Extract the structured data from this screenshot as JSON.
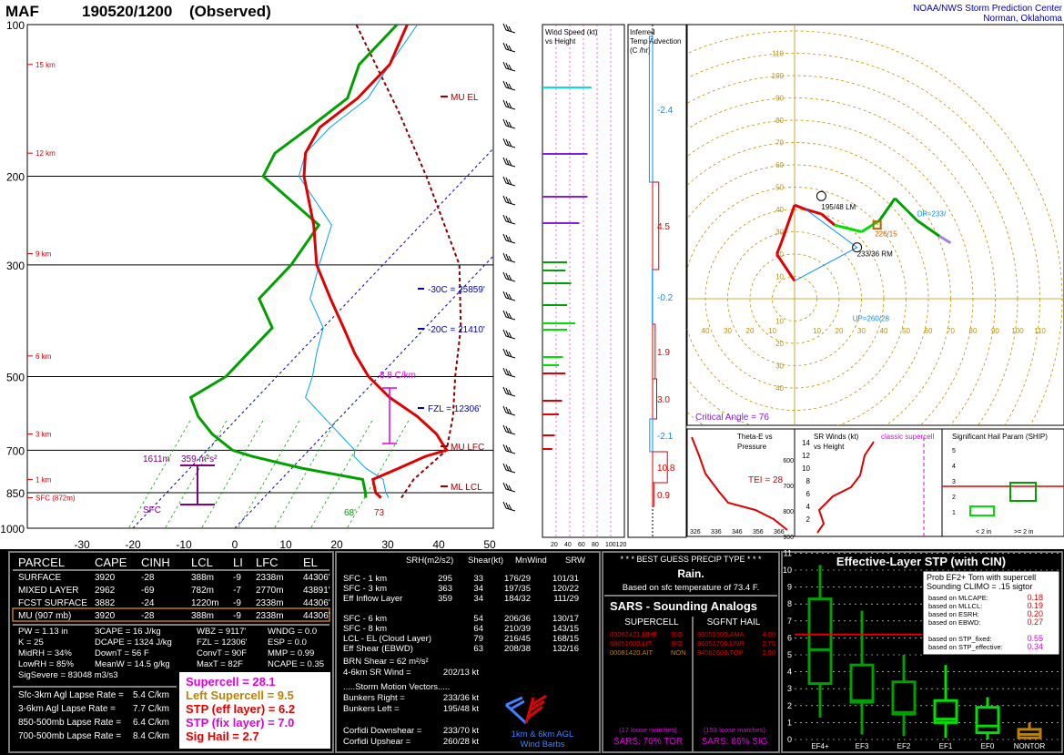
{
  "header": {
    "station": "MAF",
    "time": "190520/1200",
    "status": "(Observed)",
    "org_line1": "NOAA/NWS Storm Prediction Center",
    "org_line2": "Norman, Oklahoma"
  },
  "colors": {
    "temperature": "#e00000",
    "dewpoint": "#00a000",
    "virtual_temp": "#e00000",
    "parcel": "#8b0000",
    "wetbulb": "#00a0ff",
    "label_blue": "#0000c0",
    "label_magenta": "#e000e0",
    "label_purple": "#800080",
    "panel_bg": "#000000",
    "panel_border": "#7a7a7a"
  },
  "chart_data": {
    "type": "line",
    "title": "MAF 190520/1200 (Observed)",
    "pressure_labels": [
      "100",
      "200",
      "300",
      "500",
      "700",
      "850",
      "1000"
    ],
    "pressure_levels": [
      100,
      200,
      300,
      500,
      700,
      850,
      1000
    ],
    "temp_ticks": [
      "-30",
      "-20",
      "-10",
      "0",
      "10",
      "20",
      "30",
      "40",
      "50"
    ],
    "temp_tick_values": [
      -30,
      -20,
      -10,
      0,
      10,
      20,
      30,
      40,
      50
    ],
    "height_labels": [
      "15 km",
      "12 km",
      "9 km",
      "6 km",
      "3 km",
      "1 km",
      "SFC (872m)"
    ],
    "height_label_pressures": [
      120,
      180,
      285,
      455,
      650,
      800,
      870
    ],
    "series": [
      {
        "name": "Temperature",
        "pressure": [
          870,
          850,
          800,
          760,
          720,
          700,
          650,
          600,
          550,
          500,
          450,
          400,
          350,
          300,
          250,
          200,
          180,
          160,
          140,
          120,
          100
        ],
        "values": [
          23,
          21,
          18,
          21,
          24,
          27,
          22,
          15,
          6,
          -2,
          -9,
          -16,
          -24,
          -33,
          -41,
          -52,
          -56,
          -58,
          -56,
          -56,
          -60
        ]
      },
      {
        "name": "Dewpoint",
        "pressure": [
          870,
          850,
          800,
          760,
          720,
          700,
          650,
          600,
          550,
          500,
          450,
          400,
          350,
          300,
          250,
          200,
          180,
          160,
          140,
          120,
          100
        ],
        "values": [
          20,
          19,
          16,
          2,
          -10,
          -15,
          -22,
          -28,
          -33,
          -30,
          -30,
          -30,
          -38,
          -38,
          -40,
          -60,
          -62,
          -60,
          -58,
          -62,
          -62
        ]
      }
    ],
    "labels": {
      "mu_el": "MU  EL",
      "mu_lfc": "MU LFC",
      "ml_lcl": "ML  LCL",
      "wbz1": "-30C = 25859'",
      "wbz2": "-20C = 21410'",
      "fzl": "FZL = 12306'",
      "lapse": "8.8 C/km",
      "eff_depth": "1611m",
      "eff_srh": "359 m²s²",
      "sfc": "SFC",
      "sfc_t": "73",
      "sfc_td": "68'"
    },
    "wind_speed": {
      "title": "Wind Speed (kt)",
      "subtitle": "vs Height",
      "ticks": [
        "20",
        "40",
        "60",
        "80",
        "100120"
      ],
      "bars": [
        {
          "color": "#00e0e0",
          "value": 60
        },
        {
          "color": "#8020e0",
          "value": 55
        },
        {
          "color": "#8020e0",
          "value": 55
        },
        {
          "color": "#8020e0",
          "value": 45
        },
        {
          "color": "#00a000",
          "value": 30
        },
        {
          "color": "#00a000",
          "value": 28
        },
        {
          "color": "#00a000",
          "value": 35
        },
        {
          "color": "#00a000",
          "value": 30
        },
        {
          "color": "#00e000",
          "value": 40
        },
        {
          "color": "#00e000",
          "value": 30
        },
        {
          "color": "#00e000",
          "value": 25
        },
        {
          "color": "#00e000",
          "value": 20
        },
        {
          "color": "#e00000",
          "value": 28
        },
        {
          "color": "#e00000",
          "value": 24
        },
        {
          "color": "#e00000",
          "value": 20
        },
        {
          "color": "#e00000",
          "value": 15
        },
        {
          "color": "#e00000",
          "value": 12
        }
      ]
    },
    "temp_adv": {
      "title": "Inferred",
      "subtitle": "Temp Advection",
      "units": "(C /hr)",
      "values": [
        "-2.4",
        "4.5",
        "-0.2",
        "1.9",
        "3.0",
        "-2.1",
        "10.8",
        "0.9"
      ]
    },
    "hodograph": {
      "ring_labels": [
        "10",
        "20",
        "30",
        "40",
        "50",
        "60",
        "70",
        "80",
        "90",
        "100",
        "110"
      ],
      "axis_ticks_x": [
        "10",
        "20",
        "30",
        "40",
        "50",
        "60",
        "70",
        "80",
        "90",
        "100",
        "110"
      ],
      "bunkers_left": "195/48 LM",
      "bunkers_right": "233/36 RM",
      "mean_wind": "226/15",
      "dp": "DP=233/",
      "up": "UP=260/28",
      "critical_angle": "Critical Angle = 76",
      "points_u": [
        0,
        -8,
        -6,
        0,
        5,
        12,
        18,
        30,
        38,
        45,
        50,
        55,
        65,
        70
      ],
      "points_v": [
        8,
        20,
        25,
        42,
        40,
        38,
        33,
        30,
        35,
        45,
        40,
        35,
        28,
        25
      ]
    },
    "theta_e": {
      "title": "Theta-E vs",
      "subtitle": "Pressure",
      "tei": "TEI = 28",
      "ticks": [
        "326",
        "336",
        "346",
        "356",
        "366"
      ],
      "pticks": [
        "600",
        "700",
        "800",
        "900"
      ]
    },
    "sr_winds": {
      "title": "SR Winds (kt)",
      "subtitle": "vs Height",
      "note": "classic supercell",
      "yticks": [
        "14",
        "12",
        "10",
        "8",
        "6",
        "4",
        "2"
      ]
    },
    "ship": {
      "title": "Significant Hail Param (SHIP)",
      "yticks": [
        "5",
        "4",
        "3",
        "2",
        "1"
      ],
      "cats": [
        "< 2 in",
        ">= 2 in"
      ]
    }
  },
  "parcel_table": {
    "headers": [
      "PARCEL",
      "CAPE",
      "CINH",
      "LCL",
      "LI",
      "LFC",
      "EL"
    ],
    "rows": [
      [
        "SURFACE",
        "3920",
        "-28",
        "388m",
        "-9",
        "2338m",
        "44306'"
      ],
      [
        "MIXED LAYER",
        "2962",
        "-69",
        "782m",
        "-7",
        "2770m",
        "43891'"
      ],
      [
        "FCST SURFACE",
        "3882",
        "-24",
        "1220m",
        "-9",
        "2338m",
        "44306'"
      ],
      [
        "MU  (907 mb)",
        "3920",
        "-28",
        "388m",
        "-9",
        "2338m",
        "44306'"
      ]
    ]
  },
  "indices": [
    [
      "PW = 1.13 in",
      "3CAPE = 16 J/kg",
      "WBZ = 9117'",
      "WNDG = 0.0"
    ],
    [
      "K = 25",
      "DCAPE = 1324 J/kg",
      "FZL = 12306'",
      "ESP = 0.0"
    ],
    [
      "MidRH = 34%",
      "DownT = 56 F",
      "ConvT = 90F",
      "MMP = 0.99"
    ],
    [
      "LowRH = 85%",
      "MeanW = 14.5 g/kg",
      "MaxT = 82F",
      "NCAPE = 0.35"
    ],
    [
      "SigSevere = 83048 m3/s3",
      "",
      "",
      ""
    ]
  ],
  "lapse_rates": [
    [
      "Sfc-3km Agl Lapse Rate =",
      "5.4 C/km"
    ],
    [
      "3-6km Agl Lapse Rate =",
      "7.7 C/km"
    ],
    [
      "850-500mb Lapse Rate =",
      "6.4 C/km"
    ],
    [
      "700-500mb Lapse Rate =",
      "8.4 C/km"
    ]
  ],
  "composites": [
    {
      "text": "Supercell = 28.1",
      "color": "#e000e0"
    },
    {
      "text": "Left Supercell = 9.5",
      "color": "#c08000"
    },
    {
      "text": "STP (eff layer) = 6.2",
      "color": "#e00000"
    },
    {
      "text": "STP (fix layer) = 7.0",
      "color": "#e000e0"
    },
    {
      "text": "Sig Hail = 2.7",
      "color": "#e00000"
    }
  ],
  "kinematics": {
    "headers": [
      "SRH(m2/s2)",
      "Shear(kt)",
      "MnWind",
      "SRW"
    ],
    "rows": [
      [
        "SFC - 1 km",
        "295",
        "33",
        "176/29",
        "101/31"
      ],
      [
        "SFC - 3 km",
        "363",
        "34",
        "197/35",
        "120/22"
      ],
      [
        "Eff Inflow Layer",
        "359",
        "34",
        "184/32",
        "111/29"
      ],
      [
        "",
        "",
        "",
        "",
        ""
      ],
      [
        "SFC - 6 km",
        "",
        "54",
        "206/36",
        "130/17"
      ],
      [
        "SFC - 8 km",
        "",
        "64",
        "210/39",
        "143/15"
      ],
      [
        "LCL - EL (Cloud Layer)",
        "",
        "79",
        "216/45",
        "168/15"
      ],
      [
        "Eff Shear (EBWD)",
        "",
        "63",
        "208/38",
        "132/16"
      ]
    ],
    "brn_shear": "BRN Shear =   62 m²/s²",
    "sr_wind_label": "4-6km SR Wind =",
    "sr_wind_value": "202/13 kt",
    "storm_motion_header": ".....Storm Motion Vectors.....",
    "storm_motion": [
      [
        "Bunkers Right =",
        "233/36 kt"
      ],
      [
        "Bunkers Left =",
        "195/48 kt"
      ],
      [
        "",
        ""
      ],
      [
        "Corfidi Downshear =",
        "233/70 kt"
      ],
      [
        "Corfidi Upshear =",
        "260/28 kt"
      ]
    ],
    "barb_caption1": "1km & 6km AGL",
    "barb_caption2": "Wind Barbs"
  },
  "precip": {
    "title": "* * * BEST GUESS PRECIP TYPE * * *",
    "type": "Rain.",
    "basis": "Based on sfc temperature of 73.4 F."
  },
  "sars": {
    "title": "SARS - Sounding Analogs",
    "col1": "SUPERCELL",
    "col2": "SGFNT HAIL",
    "supercell": [
      {
        "id": "03062421.MHE",
        "cat": "SIG",
        "color": "#e00000"
      },
      {
        "id": "68051600.LIT",
        "cat": "SIG",
        "color": "#e00000"
      },
      {
        "id": "00081420.AIT",
        "cat": "NON",
        "color": "#c08000"
      }
    ],
    "hail": [
      {
        "id": "90051500.AMA",
        "val": "4.00",
        "color": "#e00000"
      },
      {
        "id": "96051700.UNR",
        "val": "2.75",
        "color": "#e00000"
      },
      {
        "id": "94062600.TOP",
        "val": "2.50",
        "color": "#e00000"
      }
    ],
    "loose1": "(17 loose matches)",
    "loose2": "(153 loose matches)",
    "foot1": "SARS:  76% TOR",
    "foot2": "SARS:  86% SIG"
  },
  "stp": {
    "title": "Effective-Layer STP (with CIN)",
    "prob_title1": "Prob EF2+ Torn with supercell",
    "prob_title2": "Sounding CLIMO = .15 sigtor",
    "probs": [
      [
        "based on MLCAPE:",
        "0.18"
      ],
      [
        "based on MLLCL:",
        "0.19"
      ],
      [
        "based on ESRH:",
        "0.20"
      ],
      [
        "based on EBWD:",
        "0.27"
      ],
      [
        "",
        ""
      ],
      [
        "based on STP_fixed:",
        "0.55"
      ],
      [
        "based on STP_effective:",
        "0.34"
      ]
    ],
    "yticks": [
      "11",
      "10",
      "9",
      "8",
      "7",
      "6",
      "5",
      "4",
      "3",
      "2",
      "1",
      "0"
    ],
    "cats": [
      "EF4+",
      "EF3",
      "EF2",
      "EF1",
      "EF0",
      "NONTOR"
    ],
    "box_q1": [
      3.3,
      2.2,
      1.5,
      1.0,
      0.4,
      0.1
    ],
    "box_med": [
      5.3,
      2.3,
      1.6,
      1.2,
      0.8,
      0.3
    ],
    "box_q3": [
      8.3,
      4.4,
      3.4,
      2.3,
      1.9,
      0.6
    ],
    "box_lo": [
      1.3,
      0.3,
      0.2,
      0.1,
      0.0,
      0.0
    ],
    "box_hi": [
      10.3,
      7.6,
      5.0,
      4.4,
      2.5,
      1.0
    ],
    "current": 6.2
  }
}
